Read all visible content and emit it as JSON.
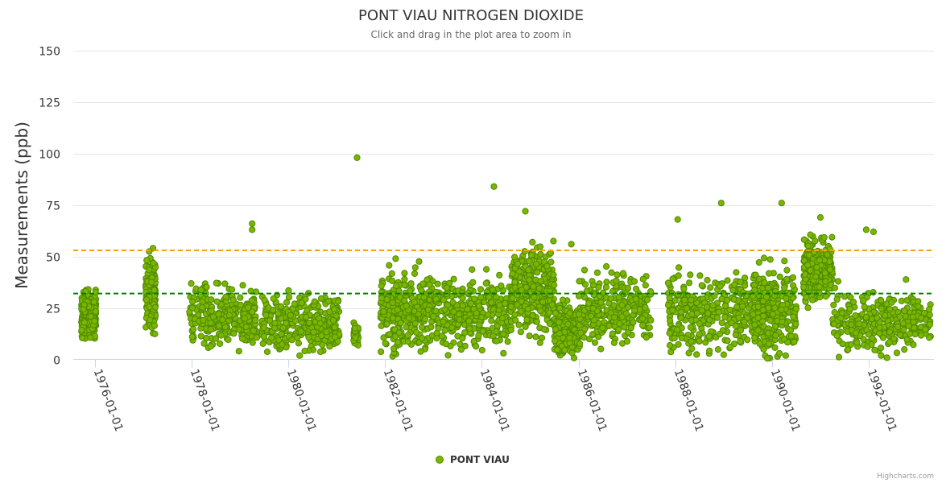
{
  "chart_data": {
    "type": "scatter",
    "title": "PONT VIAU NITROGEN DIOXIDE",
    "subtitle": "Click and drag in the plot area to zoom in",
    "ylabel": "Measurements (ppb)",
    "xlabel": "",
    "ylim": [
      0,
      150
    ],
    "yticks": [
      "0",
      "25",
      "50",
      "75",
      "100",
      "125",
      "150"
    ],
    "xlim": [
      1975.55,
      1993.35
    ],
    "xticks": [
      {
        "year": 1976,
        "label": "1976-01-01"
      },
      {
        "year": 1978,
        "label": "1978-01-01"
      },
      {
        "year": 1980,
        "label": "1980-01-01"
      },
      {
        "year": 1982,
        "label": "1982-01-01"
      },
      {
        "year": 1984,
        "label": "1984-01-01"
      },
      {
        "year": 1986,
        "label": "1986-01-01"
      },
      {
        "year": 1988,
        "label": "1988-01-01"
      },
      {
        "year": 1990,
        "label": "1990-01-01"
      },
      {
        "year": 1992,
        "label": "1992-01-01"
      }
    ],
    "reference_lines": [
      {
        "value": 53,
        "color": "#f0a30a",
        "style": "dashed"
      },
      {
        "value": 32,
        "color": "#008000",
        "style": "dashed"
      }
    ],
    "series": [
      {
        "name": "PONT VIAU",
        "color": "#7cb500",
        "stroke": "#4d8a00",
        "clusters": [
          {
            "start": 1975.72,
            "end": 1976.02,
            "mean": 22,
            "spread": 6,
            "density": 260
          },
          {
            "start": 1977.05,
            "end": 1977.25,
            "mean": 32,
            "spread": 9,
            "density": 200
          },
          {
            "start": 1977.95,
            "end": 1979.35,
            "mean": 20,
            "spread": 8,
            "density": 280
          },
          {
            "start": 1979.45,
            "end": 1981.05,
            "mean": 18,
            "spread": 8,
            "density": 300
          },
          {
            "start": 1981.35,
            "end": 1981.45,
            "mean": 12,
            "spread": 3,
            "density": 40
          },
          {
            "start": 1981.9,
            "end": 1983.0,
            "mean": 24,
            "spread": 10,
            "density": 300
          },
          {
            "start": 1983.0,
            "end": 1984.6,
            "mean": 22,
            "spread": 9,
            "density": 320
          },
          {
            "start": 1984.6,
            "end": 1985.5,
            "mean": 34,
            "spread": 12,
            "density": 320
          },
          {
            "start": 1985.5,
            "end": 1986.0,
            "mean": 14,
            "spread": 7,
            "density": 220
          },
          {
            "start": 1986.0,
            "end": 1987.5,
            "mean": 24,
            "spread": 9,
            "density": 260
          },
          {
            "start": 1987.85,
            "end": 1989.6,
            "mean": 22,
            "spread": 10,
            "density": 300
          },
          {
            "start": 1989.6,
            "end": 1990.5,
            "mean": 24,
            "spread": 12,
            "density": 300
          },
          {
            "start": 1990.65,
            "end": 1991.25,
            "mean": 44,
            "spread": 8,
            "density": 320
          },
          {
            "start": 1991.25,
            "end": 1993.3,
            "mean": 18,
            "spread": 8,
            "density": 300
          }
        ],
        "outliers": [
          {
            "x": 1981.42,
            "y": 98
          },
          {
            "x": 1984.25,
            "y": 84
          },
          {
            "x": 1984.9,
            "y": 72
          },
          {
            "x": 1988.95,
            "y": 76
          },
          {
            "x": 1990.2,
            "y": 76
          },
          {
            "x": 1979.25,
            "y": 66
          },
          {
            "x": 1979.25,
            "y": 63
          },
          {
            "x": 1991.0,
            "y": 69
          },
          {
            "x": 1991.95,
            "y": 63
          },
          {
            "x": 1992.1,
            "y": 62
          },
          {
            "x": 1988.05,
            "y": 68
          },
          {
            "x": 1977.2,
            "y": 54
          },
          {
            "x": 1985.85,
            "y": 56
          }
        ]
      }
    ],
    "legend": {
      "position": "bottom-center",
      "label": "PONT VIAU"
    }
  },
  "credits": "Highcharts.com"
}
